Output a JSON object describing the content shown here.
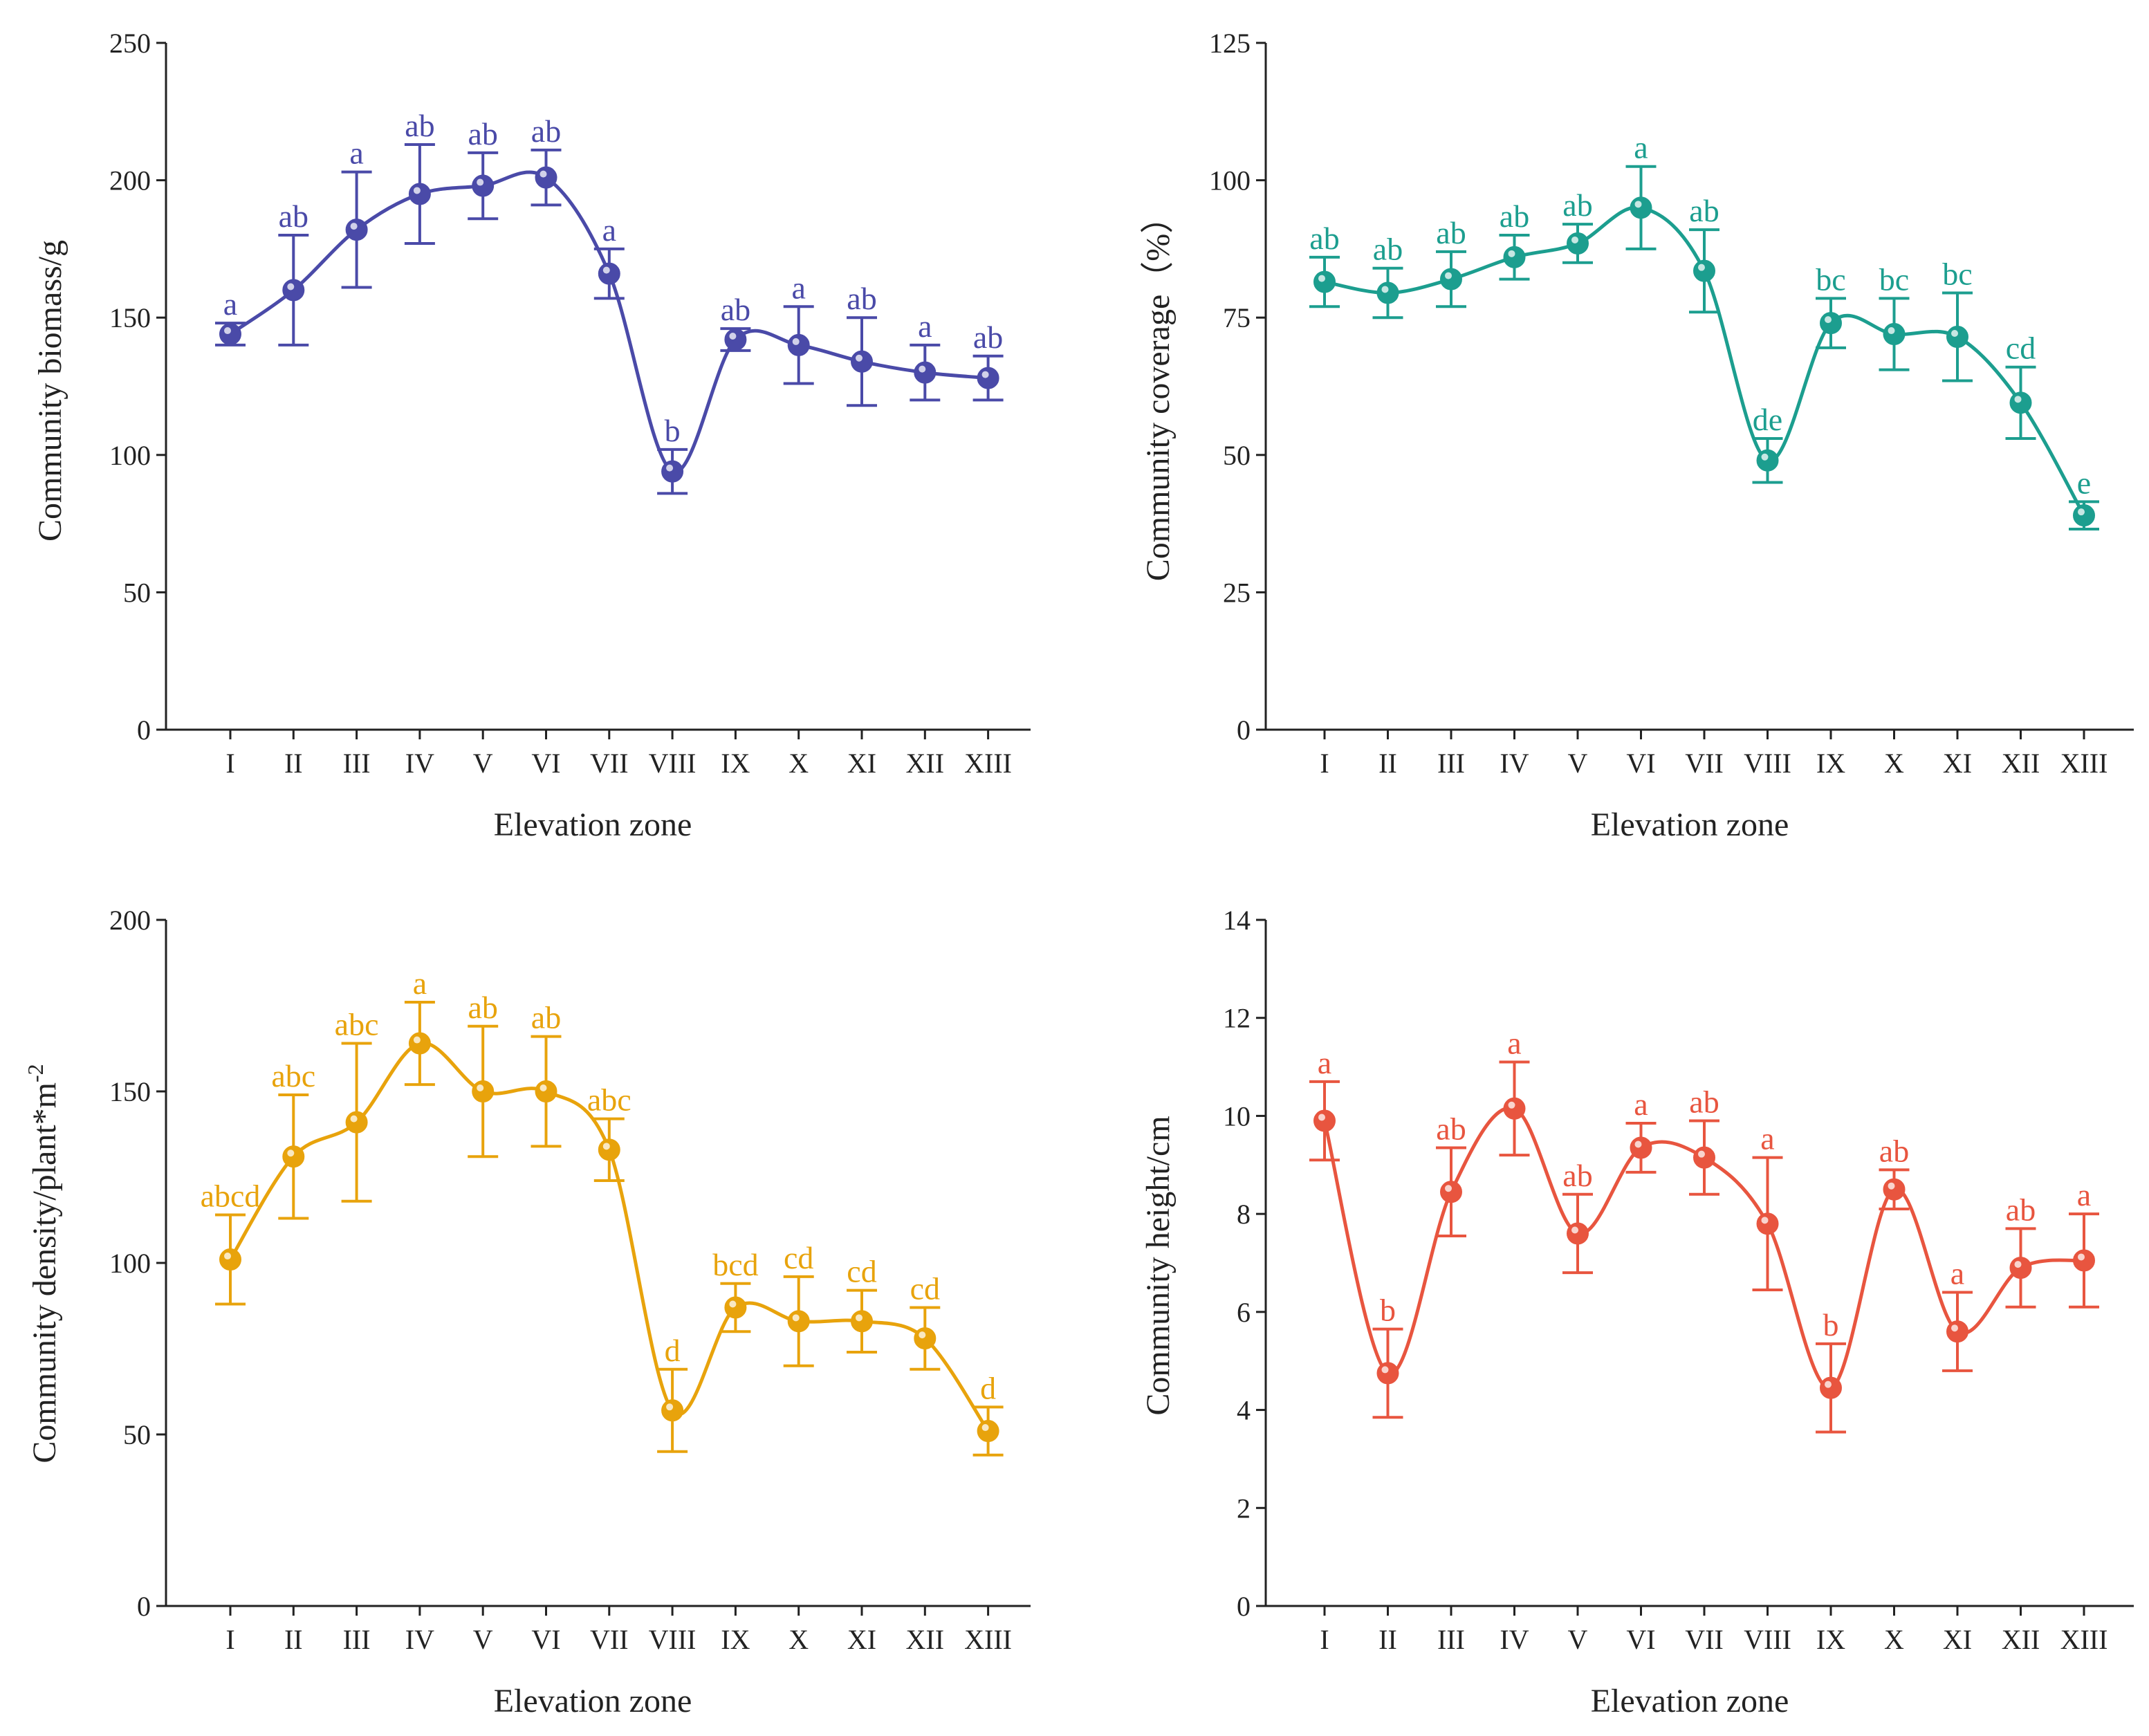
{
  "chart_data": [
    {
      "type": "line",
      "categories": [
        "I",
        "II",
        "III",
        "IV",
        "V",
        "VI",
        "VII",
        "VIII",
        "IX",
        "X",
        "XI",
        "XII",
        "XIII"
      ],
      "values": [
        144,
        160,
        182,
        195,
        198,
        201,
        166,
        94,
        142,
        140,
        134,
        130,
        128
      ],
      "errors": [
        4,
        20,
        21,
        18,
        12,
        10,
        9,
        8,
        4,
        14,
        16,
        10,
        8
      ],
      "significance": [
        "a",
        "ab",
        "a",
        "ab",
        "ab",
        "ab",
        "a",
        "b",
        "ab",
        "a",
        "ab",
        "a",
        "ab"
      ],
      "xlabel": "Elevation zone",
      "ylabel": "Community biomass/g",
      "ylabel_superscript": "",
      "ylim": [
        0,
        250
      ],
      "yticks": [
        "0",
        "50",
        "100",
        "150",
        "200",
        "250"
      ],
      "color": "#4a4aa8"
    },
    {
      "type": "line",
      "categories": [
        "I",
        "II",
        "III",
        "IV",
        "V",
        "VI",
        "VII",
        "VIII",
        "IX",
        "X",
        "XI",
        "XII",
        "XIII"
      ],
      "values": [
        81.5,
        79.5,
        82,
        86,
        88.5,
        95,
        83.5,
        49,
        74,
        72,
        71.5,
        59.5,
        39
      ],
      "errors": [
        4.5,
        4.5,
        5,
        4,
        3.5,
        7.5,
        7.5,
        4,
        4.5,
        6.5,
        8,
        6.5,
        2.5
      ],
      "significance": [
        "ab",
        "ab",
        "ab",
        "ab",
        "ab",
        "a",
        "ab",
        "de",
        "bc",
        "bc",
        "bc",
        "cd",
        "e"
      ],
      "xlabel": "Elevation zone",
      "ylabel": "Community coverage（%）",
      "ylabel_superscript": "",
      "ylim": [
        0,
        125
      ],
      "yticks": [
        "0",
        "25",
        "50",
        "75",
        "100",
        "125"
      ],
      "color": "#1c9e8f"
    },
    {
      "type": "line",
      "categories": [
        "I",
        "II",
        "III",
        "IV",
        "V",
        "VI",
        "VII",
        "VIII",
        "IX",
        "X",
        "XI",
        "XII",
        "XIII"
      ],
      "values": [
        101,
        131,
        141,
        164,
        150,
        150,
        133,
        57,
        87,
        83,
        83,
        78,
        51
      ],
      "errors": [
        13,
        18,
        23,
        12,
        19,
        16,
        9,
        12,
        7,
        13,
        9,
        9,
        7
      ],
      "significance": [
        "abcd",
        "abc",
        "abc",
        "a",
        "ab",
        "ab",
        "abc",
        "d",
        "bcd",
        "cd",
        "cd",
        "cd",
        "d"
      ],
      "xlabel": "Elevation zone",
      "ylabel": "Community density/plant*m",
      "ylabel_superscript": "-2",
      "ylim": [
        0,
        200
      ],
      "yticks": [
        "0",
        "50",
        "100",
        "150",
        "200"
      ],
      "color": "#e8a30c"
    },
    {
      "type": "line",
      "categories": [
        "I",
        "II",
        "III",
        "IV",
        "V",
        "VI",
        "VII",
        "VIII",
        "IX",
        "X",
        "XI",
        "XII",
        "XIII"
      ],
      "values": [
        9.9,
        4.75,
        8.45,
        10.15,
        7.6,
        9.35,
        9.15,
        7.8,
        4.45,
        8.5,
        5.6,
        6.9,
        7.05
      ],
      "errors": [
        0.8,
        0.9,
        0.9,
        0.95,
        0.8,
        0.5,
        0.75,
        1.35,
        0.9,
        0.4,
        0.8,
        0.8,
        0.95
      ],
      "significance": [
        "a",
        "b",
        "ab",
        "a",
        "ab",
        "a",
        "ab",
        "a",
        "b",
        "ab",
        "a",
        "ab",
        "a"
      ],
      "xlabel": "Elevation zone",
      "ylabel": "Community height/cm",
      "ylabel_superscript": "",
      "ylim": [
        0,
        14
      ],
      "yticks": [
        "0",
        "2",
        "4",
        "6",
        "8",
        "10",
        "12",
        "14"
      ],
      "color": "#e8553f"
    }
  ]
}
